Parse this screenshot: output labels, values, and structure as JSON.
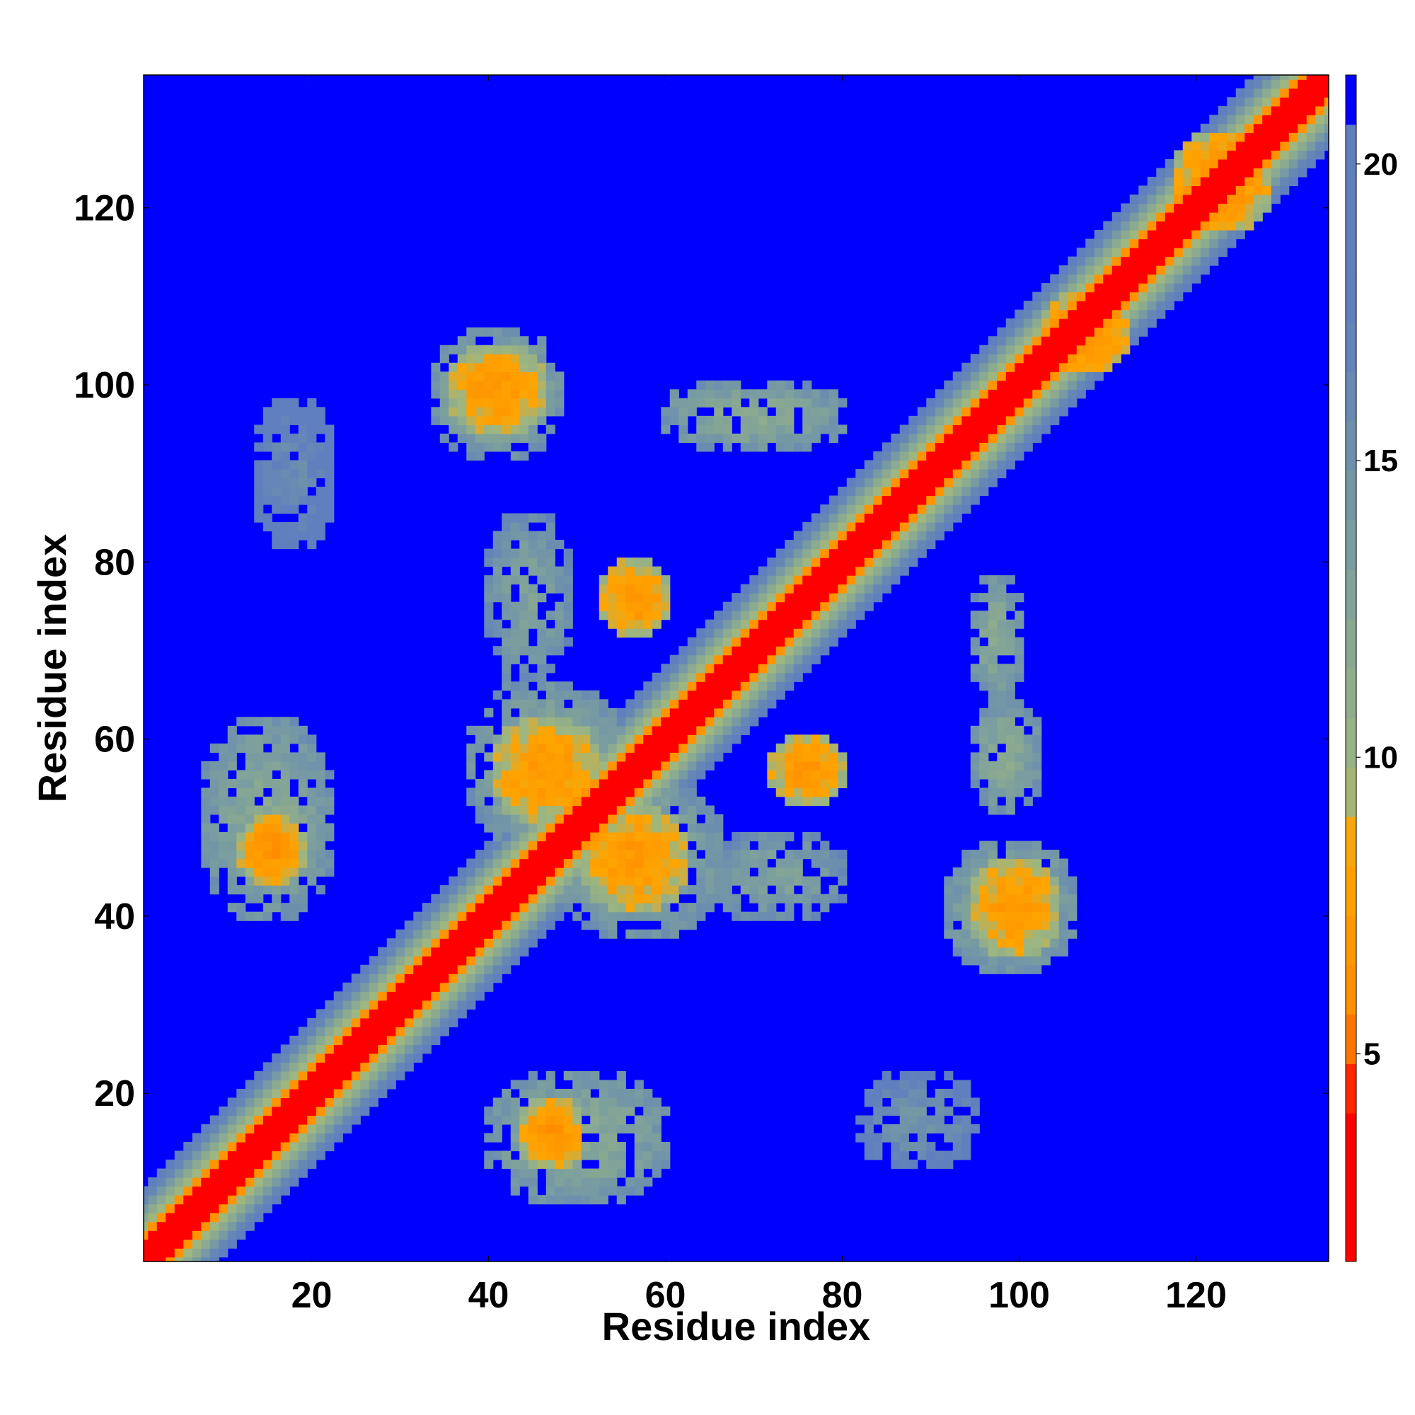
{
  "chart_data": {
    "type": "heatmap",
    "title": "",
    "xlabel": "Residue index",
    "ylabel": "Residue index",
    "n_residues": 135,
    "xlim": [
      1,
      135
    ],
    "ylim": [
      1,
      135
    ],
    "x_ticks": [
      20,
      40,
      60,
      80,
      100,
      120
    ],
    "y_ticks": [
      20,
      40,
      60,
      80,
      100,
      120
    ],
    "colorbar": {
      "ticks": [
        5,
        10,
        15,
        20
      ],
      "range": [
        1.5,
        21.5
      ],
      "colormap": "red-orange-green-slateblue-blue",
      "cutoff": 21
    },
    "colors": {
      "red": "#ff0000",
      "orange": "#ff8c00",
      "amber": "#ffa500",
      "sage": "#9eb67f",
      "teal_gray": "#7a9e9f",
      "steel_blue": "#5f7fbe",
      "background_blue": "#0000ff"
    },
    "diagonal_band": {
      "from": 1,
      "to": 135,
      "value_at_offset": [
        2.5,
        3.5,
        6.5,
        9.5,
        11.5,
        14,
        16.5,
        18.5
      ]
    },
    "contact_regions": [
      {
        "x": [
          12,
          19
        ],
        "y": [
          44,
          51
        ],
        "value": 6.5,
        "note": ""
      },
      {
        "x": [
          8,
          22
        ],
        "y": [
          40,
          62
        ],
        "value": 12,
        "note": ""
      },
      {
        "x": [
          44,
          50
        ],
        "y": [
          12,
          19
        ],
        "value": 6.5,
        "note": ""
      },
      {
        "x": [
          40,
          60
        ],
        "y": [
          8,
          22
        ],
        "value": 12,
        "note": ""
      },
      {
        "x": [
          41,
          52
        ],
        "y": [
          51,
          62
        ],
        "value": 7,
        "note": ""
      },
      {
        "x": [
          38,
          55
        ],
        "y": [
          48,
          66
        ],
        "value": 12,
        "note": ""
      },
      {
        "x": [
          51,
          62
        ],
        "y": [
          41,
          52
        ],
        "value": 7,
        "note": ""
      },
      {
        "x": [
          48,
          66
        ],
        "y": [
          38,
          55
        ],
        "value": 12,
        "note": ""
      },
      {
        "x": [
          36,
          46
        ],
        "y": [
          95,
          104
        ],
        "value": 7,
        "note": ""
      },
      {
        "x": [
          34,
          48
        ],
        "y": [
          92,
          106
        ],
        "value": 12,
        "note": ""
      },
      {
        "x": [
          95,
          104
        ],
        "y": [
          36,
          46
        ],
        "value": 7,
        "note": ""
      },
      {
        "x": [
          92,
          106
        ],
        "y": [
          34,
          48
        ],
        "value": 12,
        "note": ""
      },
      {
        "x": [
          53,
          60
        ],
        "y": [
          72,
          80
        ],
        "value": 7,
        "note": ""
      },
      {
        "x": [
          40,
          49
        ],
        "y": [
          67,
          85
        ],
        "value": 13,
        "note": ""
      },
      {
        "x": [
          72,
          80
        ],
        "y": [
          53,
          60
        ],
        "value": 7,
        "note": ""
      },
      {
        "x": [
          65,
          80
        ],
        "y": [
          40,
          49
        ],
        "value": 13,
        "note": ""
      },
      {
        "x": [
          95,
          102
        ],
        "y": [
          52,
          64
        ],
        "value": 12,
        "note": ""
      },
      {
        "x": [
          95,
          100
        ],
        "y": [
          65,
          78
        ],
        "value": 12,
        "note": ""
      },
      {
        "x": [
          60,
          80
        ],
        "y": [
          93,
          100
        ],
        "value": 12,
        "note": ""
      },
      {
        "x": [
          82,
          95
        ],
        "y": [
          12,
          22
        ],
        "value": 15,
        "note": ""
      },
      {
        "x": [
          14,
          22
        ],
        "y": [
          82,
          98
        ],
        "value": 16,
        "note": ""
      },
      {
        "x": [
          103,
          112
        ],
        "y": [
          102,
          110
        ],
        "value": 6.5,
        "note": ""
      },
      {
        "x": [
          118,
          128
        ],
        "y": [
          118,
          128
        ],
        "value": 6.5,
        "note": ""
      }
    ]
  }
}
